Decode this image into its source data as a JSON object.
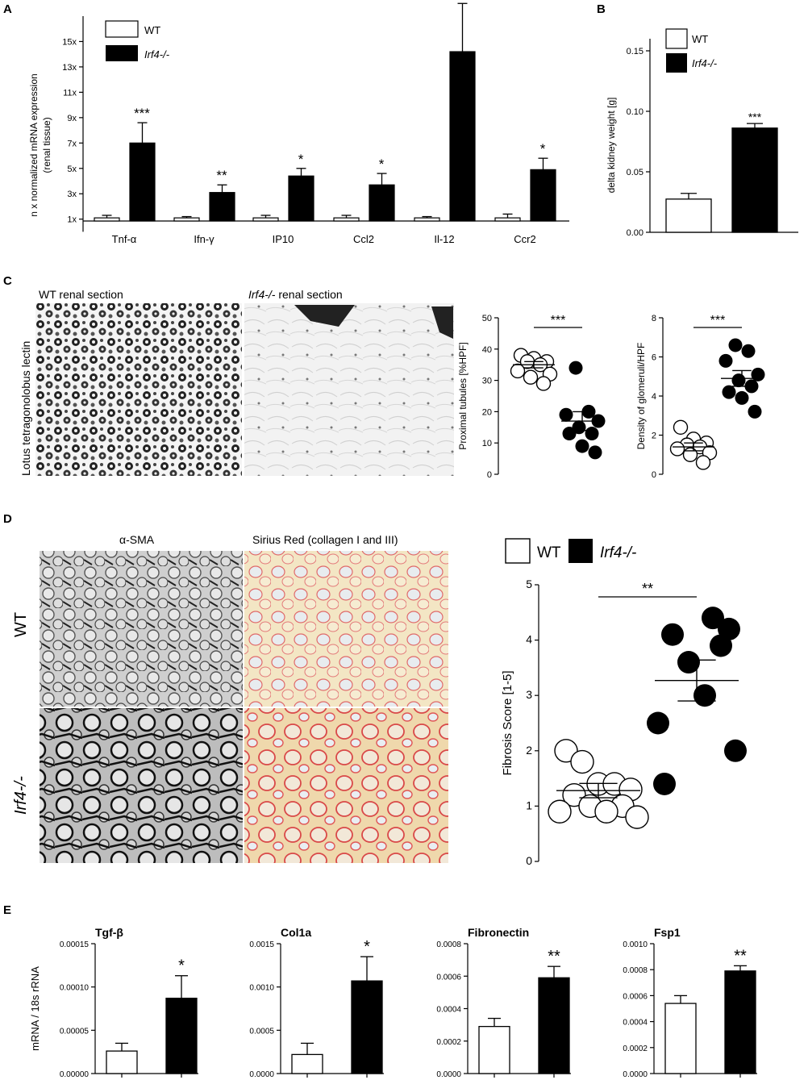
{
  "panels": {
    "a": "A",
    "b": "B",
    "c": "C",
    "d": "D",
    "e": "E"
  },
  "legend": {
    "wt": "WT",
    "ko": "Irf4-/-"
  },
  "chart_data": [
    {
      "id": "A",
      "type": "bar",
      "ylabel_line1": "n x normalized mRNA expression",
      "ylabel_line2": "(renal tissue)",
      "ylim": [
        0,
        17
      ],
      "yticks": [
        "1x",
        "3x",
        "5x",
        "7x",
        "9x",
        "11x",
        "13x",
        "15x"
      ],
      "ytick_values": [
        1,
        3,
        5,
        7,
        9,
        11,
        13,
        15
      ],
      "categories": [
        "Tnf-α",
        "Ifn-γ",
        "IP10",
        "Ccl2",
        "Il-12",
        "Ccr2"
      ],
      "series": [
        {
          "name": "WT",
          "values": [
            1.1,
            1.1,
            1.1,
            1.1,
            1.1,
            1.1
          ],
          "errors": [
            0.2,
            0.1,
            0.2,
            0.2,
            0.1,
            0.3
          ]
        },
        {
          "name": "Irf4-/-",
          "values": [
            7.0,
            3.1,
            4.4,
            3.7,
            14.2,
            4.9
          ],
          "errors": [
            1.6,
            0.6,
            0.6,
            0.9,
            3.8,
            0.9
          ]
        }
      ],
      "significance": [
        "***",
        "**",
        "*",
        "*",
        "*",
        "*"
      ]
    },
    {
      "id": "B",
      "type": "bar",
      "ylabel": "delta kidney weight [g]",
      "ylim": [
        0,
        0.16
      ],
      "yticks": [
        "0.00",
        "0.05",
        "0.10",
        "0.15"
      ],
      "ytick_values": [
        0,
        0.05,
        0.1,
        0.15
      ],
      "categories": [
        "WT",
        "Irf4-/-"
      ],
      "values": [
        0.029,
        0.091
      ],
      "errors": [
        0.005,
        0.004
      ],
      "significance": "***"
    },
    {
      "id": "C1",
      "type": "scatter",
      "ylabel": "Proximal tubules [%HPF]",
      "ylim": [
        0,
        50
      ],
      "yticks": [
        "0",
        "10",
        "20",
        "30",
        "40",
        "50"
      ],
      "ytick_values": [
        0,
        10,
        20,
        30,
        40,
        50
      ],
      "wt": [
        38,
        37,
        36,
        36,
        35,
        33,
        32,
        31,
        29
      ],
      "ko": [
        34,
        20,
        19,
        17,
        15,
        13,
        13,
        9,
        7
      ],
      "wt_mean": 35,
      "wt_sem": 1,
      "ko_mean": 17,
      "ko_sem": 3,
      "significance": "***"
    },
    {
      "id": "C2",
      "type": "scatter",
      "ylabel": "Density of glomeruli/HPF",
      "ylim": [
        0,
        8
      ],
      "yticks": [
        "0",
        "2",
        "4",
        "6",
        "8"
      ],
      "ytick_values": [
        0,
        2,
        4,
        6,
        8
      ],
      "wt": [
        2.4,
        1.8,
        1.6,
        1.5,
        1.4,
        1.3,
        1.1,
        1.0,
        0.6
      ],
      "ko": [
        6.6,
        6.3,
        5.8,
        5.1,
        4.8,
        4.5,
        4.2,
        3.9,
        3.2
      ],
      "wt_mean": 1.4,
      "wt_sem": 0.2,
      "ko_mean": 4.9,
      "ko_sem": 0.4,
      "significance": "***"
    },
    {
      "id": "D",
      "type": "scatter",
      "ylabel": "Fibrosis Score [1-5]",
      "ylim": [
        0,
        5
      ],
      "yticks": [
        "0",
        "1",
        "2",
        "3",
        "4",
        "5"
      ],
      "ytick_values": [
        0,
        1,
        2,
        3,
        4,
        5
      ],
      "wt": [
        2.0,
        1.8,
        1.4,
        1.4,
        1.3,
        1.2,
        1.0,
        1.0,
        0.9,
        0.9,
        0.8
      ],
      "ko": [
        4.4,
        4.2,
        4.1,
        3.9,
        3.6,
        3.0,
        2.5,
        2.0,
        1.4
      ],
      "wt_mean": 1.28,
      "wt_sem": 0.13,
      "ko_mean": 3.27,
      "ko_sem": 0.37,
      "significance": "**"
    },
    {
      "id": "E1",
      "type": "bar",
      "title": "Tgf-β",
      "ylabel": "mRNA / 18s rRNA",
      "ylim": [
        0,
        0.00015
      ],
      "yticks": [
        "0.00000",
        "0.00005",
        "0.00010",
        "0.00015"
      ],
      "ytick_values": [
        0,
        5e-05,
        0.0001,
        0.00015
      ],
      "values": [
        2.6e-05,
        8.7e-05
      ],
      "errors": [
        9e-06,
        2.6e-05
      ],
      "significance": "*"
    },
    {
      "id": "E2",
      "type": "bar",
      "title": "Col1a",
      "ylim": [
        0,
        0.0015
      ],
      "yticks": [
        "0.0000",
        "0.0005",
        "0.0010",
        "0.0015"
      ],
      "ytick_values": [
        0,
        0.0005,
        0.001,
        0.0015
      ],
      "values": [
        0.00022,
        0.00107
      ],
      "errors": [
        0.00013,
        0.00028
      ],
      "significance": "*"
    },
    {
      "id": "E3",
      "type": "bar",
      "title": "Fibronectin",
      "ylim": [
        0,
        0.0008
      ],
      "yticks": [
        "0.0000",
        "0.0002",
        "0.0004",
        "0.0006",
        "0.0008"
      ],
      "ytick_values": [
        0,
        0.0002,
        0.0004,
        0.0006,
        0.0008
      ],
      "values": [
        0.00029,
        0.00059
      ],
      "errors": [
        5e-05,
        7e-05
      ],
      "significance": "**"
    },
    {
      "id": "E4",
      "type": "bar",
      "title": "Fsp1",
      "ylim": [
        0,
        0.001
      ],
      "yticks": [
        "0.0000",
        "0.0002",
        "0.0004",
        "0.0006",
        "0.0008",
        "0.0010"
      ],
      "ytick_values": [
        0,
        0.0002,
        0.0004,
        0.0006,
        0.0008,
        0.001
      ],
      "values": [
        0.00054,
        0.00079
      ],
      "errors": [
        6e-05,
        4e-05
      ],
      "significance": "**"
    }
  ],
  "histology": {
    "c_wt_caption": "WT renal section",
    "c_ko_caption_italic": "Irf4-/-",
    "c_ko_caption_rest": " renal section",
    "c_side_label": "Lotus tetragonolobus lectin",
    "d_col1": "α-SMA",
    "d_col2": "Sirius Red (collagen I and III)",
    "d_row1": "WT",
    "d_row2": "Irf4-/-"
  }
}
